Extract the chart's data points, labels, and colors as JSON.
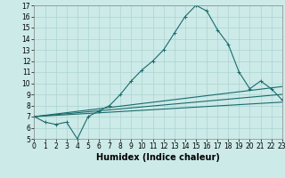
{
  "xlabel": "Humidex (Indice chaleur)",
  "bg_color": "#cceae8",
  "line_color": "#1a6b6b",
  "x_min": 0,
  "x_max": 23,
  "y_min": 5,
  "y_max": 17,
  "series1_x": [
    0,
    1,
    2,
    3,
    4,
    5,
    6,
    7,
    8,
    9,
    10,
    11,
    12,
    13,
    14,
    15,
    16,
    17,
    18,
    19,
    20,
    21,
    22,
    23
  ],
  "series1_y": [
    7.0,
    6.5,
    6.3,
    6.5,
    5.0,
    7.0,
    7.5,
    8.0,
    9.0,
    10.2,
    11.2,
    12.0,
    13.0,
    14.5,
    16.0,
    17.0,
    16.5,
    14.8,
    13.5,
    11.0,
    9.5,
    10.2,
    9.5,
    8.5
  ],
  "series2_x": [
    0,
    23
  ],
  "series2_y": [
    7.0,
    8.3
  ],
  "series3_x": [
    0,
    23
  ],
  "series3_y": [
    7.0,
    9.0
  ],
  "series4_x": [
    0,
    23
  ],
  "series4_y": [
    7.0,
    9.7
  ],
  "grid_color": "#aad4d0",
  "tick_fontsize": 5.5,
  "label_fontsize": 7.0
}
